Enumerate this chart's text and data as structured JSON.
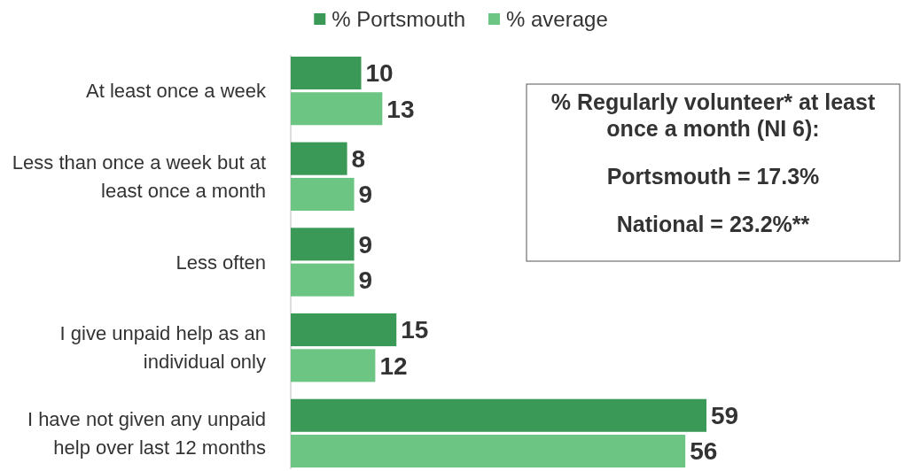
{
  "chart_data": {
    "type": "bar",
    "orientation": "horizontal",
    "data_labels": true,
    "legend": "top",
    "categories": [
      "At least once a week",
      "Less than once a week but at least once a month",
      "Less often",
      "I give unpaid help as an individual only",
      "I have not given any unpaid help over last 12 months"
    ],
    "series": [
      {
        "name": "% Portsmouth",
        "color": "#3a9956",
        "values": [
          10,
          8,
          9,
          15,
          59
        ]
      },
      {
        "name": "% average",
        "color": "#6cc583",
        "values": [
          13,
          9,
          9,
          12,
          56
        ]
      }
    ],
    "annotations": [
      "% Regularly volunteer* at least once a month (NI 6):",
      "Portsmouth = 17.3%",
      "National = 23.2%**"
    ]
  }
}
